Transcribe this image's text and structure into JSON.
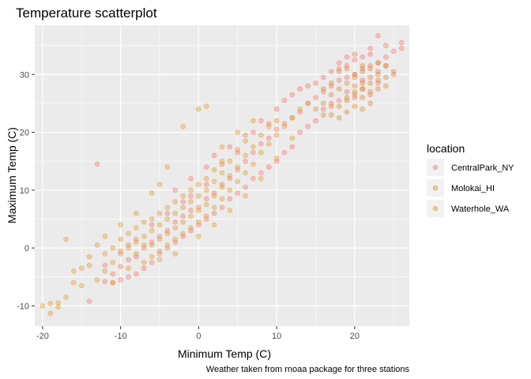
{
  "chart_data": {
    "type": "scatter",
    "title": "Temperature scatterplot",
    "xlabel": "Minimum Temp (C)",
    "ylabel": "Maximum Temp (C)",
    "caption": "Weather taken from rnoaa package for three stations",
    "xlim": [
      -21,
      27
    ],
    "ylim": [
      -13.5,
      38.5
    ],
    "x_ticks": [
      -20,
      -10,
      0,
      10,
      20
    ],
    "y_ticks": [
      -10,
      0,
      10,
      20,
      30
    ],
    "grid": true,
    "legend": {
      "title": "location",
      "placement": "right",
      "entries": [
        "CentralPark_NY",
        "Molokai_HI",
        "Waterhole_WA"
      ]
    },
    "colors": {
      "CentralPark_NY": "#F8766D",
      "Molokai_HI": "#E08B30",
      "Waterhole_WA": "#E39A2B",
      "panel_bg": "#EBEBEB",
      "grid_major": "#FFFFFF"
    },
    "series": [
      {
        "name": "CentralPark_NY",
        "points": [
          [
            -13,
            14.5
          ],
          [
            -14,
            -9.2
          ],
          [
            -12,
            -5.8
          ],
          [
            -11,
            -4.5
          ],
          [
            -10,
            -3.2
          ],
          [
            -9,
            -2.0
          ],
          [
            -8,
            -1.5
          ],
          [
            -7,
            0.0
          ],
          [
            -6,
            1.0
          ],
          [
            -5,
            2.0
          ],
          [
            -4,
            3.0
          ],
          [
            -3,
            4.5
          ],
          [
            -2,
            5.5
          ],
          [
            -1,
            6.5
          ],
          [
            0,
            7.0
          ],
          [
            1,
            8.5
          ],
          [
            2,
            9.5
          ],
          [
            3,
            11.0
          ],
          [
            4,
            12.0
          ],
          [
            5,
            13.5
          ],
          [
            6,
            15.0
          ],
          [
            7,
            16.5
          ],
          [
            8,
            18.0
          ],
          [
            9,
            19.0
          ],
          [
            10,
            20.5
          ],
          [
            11,
            21.5
          ],
          [
            12,
            22.5
          ],
          [
            13,
            23.5
          ],
          [
            14,
            25.0
          ],
          [
            15,
            26.0
          ],
          [
            16,
            27.0
          ],
          [
            17,
            28.0
          ],
          [
            18,
            29.0
          ],
          [
            19,
            29.5
          ],
          [
            20,
            30.0
          ],
          [
            21,
            31.0
          ],
          [
            22,
            31.5
          ],
          [
            23,
            32.0
          ],
          [
            24,
            33.0
          ],
          [
            25,
            34.0
          ],
          [
            26,
            35.5
          ],
          [
            26,
            34.5
          ],
          [
            23,
            36.7
          ],
          [
            25,
            30.5
          ],
          [
            24,
            31.5
          ],
          [
            22,
            33.5
          ],
          [
            21,
            33.0
          ],
          [
            20,
            32.5
          ],
          [
            19,
            31.5
          ],
          [
            18,
            31.0
          ],
          [
            17,
            25.0
          ],
          [
            16,
            24.0
          ],
          [
            15,
            22.0
          ],
          [
            14,
            21.0
          ],
          [
            13,
            20.0
          ],
          [
            12,
            17.5
          ],
          [
            11,
            16.5
          ],
          [
            10,
            15.0
          ],
          [
            9,
            14.0
          ],
          [
            8,
            13.0
          ],
          [
            7,
            12.0
          ],
          [
            6,
            10.5
          ],
          [
            5,
            9.5
          ],
          [
            4,
            8.5
          ],
          [
            3,
            7.0
          ],
          [
            2,
            6.0
          ],
          [
            1,
            5.0
          ],
          [
            0,
            4.0
          ],
          [
            -1,
            3.0
          ],
          [
            -2,
            2.0
          ],
          [
            -3,
            1.0
          ],
          [
            -4,
            0.0
          ],
          [
            -5,
            -1.0
          ],
          [
            -6,
            -2.5
          ],
          [
            -7,
            -3.5
          ],
          [
            -8,
            -4.5
          ],
          [
            -9,
            -5.0
          ],
          [
            -10,
            -5.5
          ],
          [
            -11,
            -6.0
          ],
          [
            -3,
            10.0
          ],
          [
            -1,
            12.0
          ],
          [
            1,
            14.0
          ],
          [
            2,
            16.0
          ],
          [
            4,
            17.5
          ],
          [
            6,
            19.5
          ],
          [
            8,
            22.0
          ],
          [
            10,
            24.0
          ],
          [
            12,
            26.5
          ],
          [
            14,
            28.0
          ],
          [
            16,
            29.5
          ],
          [
            18,
            32.0
          ],
          [
            20,
            33.5
          ],
          [
            22,
            34.5
          ],
          [
            24,
            35.0
          ],
          [
            19,
            27.0
          ],
          [
            21,
            27.5
          ],
          [
            23,
            28.5
          ],
          [
            20,
            26.0
          ],
          [
            18,
            25.5
          ],
          [
            22,
            26.5
          ],
          [
            17,
            30.5
          ],
          [
            19,
            33.0
          ],
          [
            21,
            29.0
          ],
          [
            23,
            30.0
          ],
          [
            15,
            28.5
          ],
          [
            13,
            27.5
          ],
          [
            11,
            25.5
          ],
          [
            9,
            21.5
          ],
          [
            7,
            20.0
          ],
          [
            5,
            16.5
          ],
          [
            3,
            14.5
          ],
          [
            1,
            11.0
          ],
          [
            -1,
            9.0
          ],
          [
            -2,
            8.0
          ],
          [
            -4,
            6.0
          ],
          [
            -6,
            4.0
          ],
          [
            -8,
            1.5
          ],
          [
            -9,
            0.5
          ],
          [
            -10,
            -1.0
          ],
          [
            -12,
            -3.0
          ]
        ]
      },
      {
        "name": "Molokai_HI",
        "points": [
          [
            17,
            23.0
          ],
          [
            18,
            24.5
          ],
          [
            19,
            25.5
          ],
          [
            20,
            26.5
          ],
          [
            21,
            27.5
          ],
          [
            22,
            28.5
          ],
          [
            23,
            29.0
          ],
          [
            17,
            26.5
          ],
          [
            18,
            27.5
          ],
          [
            19,
            28.5
          ],
          [
            20,
            29.5
          ],
          [
            21,
            30.5
          ],
          [
            22,
            31.0
          ],
          [
            23,
            32.0
          ],
          [
            24,
            31.5
          ],
          [
            24,
            29.5
          ],
          [
            16,
            25.0
          ],
          [
            16,
            27.5
          ],
          [
            18,
            30.5
          ],
          [
            19,
            31.0
          ],
          [
            20,
            28.0
          ],
          [
            21,
            26.0
          ],
          [
            22,
            27.0
          ],
          [
            23,
            27.5
          ],
          [
            17,
            28.5
          ],
          [
            20,
            24.5
          ],
          [
            21,
            24.0
          ],
          [
            19,
            23.5
          ],
          [
            22,
            25.0
          ],
          [
            18,
            22.5
          ],
          [
            20,
            30.0
          ],
          [
            21,
            31.5
          ],
          [
            22,
            29.5
          ],
          [
            23,
            30.5
          ],
          [
            24,
            28.0
          ],
          [
            25,
            30.0
          ],
          [
            15,
            24.0
          ],
          [
            16,
            23.0
          ],
          [
            17,
            24.5
          ],
          [
            19,
            26.0
          ],
          [
            20,
            27.0
          ],
          [
            21,
            28.5
          ]
        ]
      },
      {
        "name": "Waterhole_WA",
        "points": [
          [
            -20,
            -10.0
          ],
          [
            -19,
            -11.3
          ],
          [
            -19,
            -9.6
          ],
          [
            -18,
            -10.2
          ],
          [
            -17,
            1.5
          ],
          [
            -16,
            -4.0
          ],
          [
            -15,
            -6.5
          ],
          [
            -14,
            -3.0
          ],
          [
            -13,
            -5.5
          ],
          [
            -12,
            -4.0
          ],
          [
            -12,
            -1.0
          ],
          [
            -11,
            -2.5
          ],
          [
            -11,
            0.0
          ],
          [
            -10,
            -0.5
          ],
          [
            -10,
            1.5
          ],
          [
            -9,
            0.0
          ],
          [
            -9,
            2.5
          ],
          [
            -8,
            -1.0
          ],
          [
            -8,
            1.0
          ],
          [
            -8,
            3.5
          ],
          [
            -7,
            0.5
          ],
          [
            -7,
            2.0
          ],
          [
            -7,
            4.5
          ],
          [
            -6,
            -1.5
          ],
          [
            -6,
            0.5
          ],
          [
            -6,
            3.0
          ],
          [
            -6,
            5.0
          ],
          [
            -5,
            -0.5
          ],
          [
            -5,
            1.5
          ],
          [
            -5,
            4.0
          ],
          [
            -5,
            6.0
          ],
          [
            -4,
            0.5
          ],
          [
            -4,
            2.5
          ],
          [
            -4,
            5.0
          ],
          [
            -4,
            7.0
          ],
          [
            -3,
            1.5
          ],
          [
            -3,
            3.5
          ],
          [
            -3,
            6.0
          ],
          [
            -3,
            8.0
          ],
          [
            -2,
            2.5
          ],
          [
            -2,
            4.5
          ],
          [
            -2,
            7.0
          ],
          [
            -2,
            9.0
          ],
          [
            -1,
            3.5
          ],
          [
            -1,
            5.5
          ],
          [
            -1,
            8.0
          ],
          [
            -1,
            10.0
          ],
          [
            0,
            4.5
          ],
          [
            0,
            6.5
          ],
          [
            0,
            9.0
          ],
          [
            0,
            11.0
          ],
          [
            1,
            5.5
          ],
          [
            1,
            7.5
          ],
          [
            1,
            10.0
          ],
          [
            1,
            12.0
          ],
          [
            2,
            7.0
          ],
          [
            2,
            9.0
          ],
          [
            2,
            11.5
          ],
          [
            2,
            13.5
          ],
          [
            3,
            8.5
          ],
          [
            3,
            10.5
          ],
          [
            3,
            13.0
          ],
          [
            3,
            15.0
          ],
          [
            4,
            10.0
          ],
          [
            4,
            12.5
          ],
          [
            4,
            15.0
          ],
          [
            5,
            11.5
          ],
          [
            5,
            14.0
          ],
          [
            5,
            17.0
          ],
          [
            6,
            13.0
          ],
          [
            6,
            16.0
          ],
          [
            6,
            18.5
          ],
          [
            7,
            14.5
          ],
          [
            7,
            17.5
          ],
          [
            8,
            16.5
          ],
          [
            8,
            19.5
          ],
          [
            9,
            18.0
          ],
          [
            9,
            21.0
          ],
          [
            10,
            19.5
          ],
          [
            10,
            22.0
          ],
          [
            11,
            21.0
          ],
          [
            12,
            22.5
          ],
          [
            13,
            24.0
          ],
          [
            14,
            25.0
          ],
          [
            1,
            24.5
          ],
          [
            0,
            24.0
          ],
          [
            -2,
            21.0
          ],
          [
            -4,
            14.0
          ],
          [
            -5,
            11.0
          ],
          [
            -6,
            9.5
          ],
          [
            -8,
            6.0
          ],
          [
            -10,
            4.0
          ],
          [
            -12,
            2.0
          ],
          [
            -13,
            0.5
          ],
          [
            -14,
            -1.5
          ],
          [
            -15,
            -3.5
          ],
          [
            -16,
            -6.0
          ],
          [
            -17,
            -8.5
          ],
          [
            -18,
            -9.5
          ],
          [
            -11,
            -6.0
          ],
          [
            -9,
            -3.5
          ],
          [
            -7,
            -2.5
          ],
          [
            -5,
            -2.0
          ],
          [
            -3,
            -1.0
          ],
          [
            0,
            2.0
          ],
          [
            2,
            4.0
          ],
          [
            4,
            6.5
          ],
          [
            6,
            9.0
          ],
          [
            8,
            12.0
          ],
          [
            10,
            15.5
          ],
          [
            12,
            19.0
          ],
          [
            3,
            17.5
          ],
          [
            5,
            20.0
          ],
          [
            7,
            22.0
          ]
        ]
      }
    ]
  }
}
